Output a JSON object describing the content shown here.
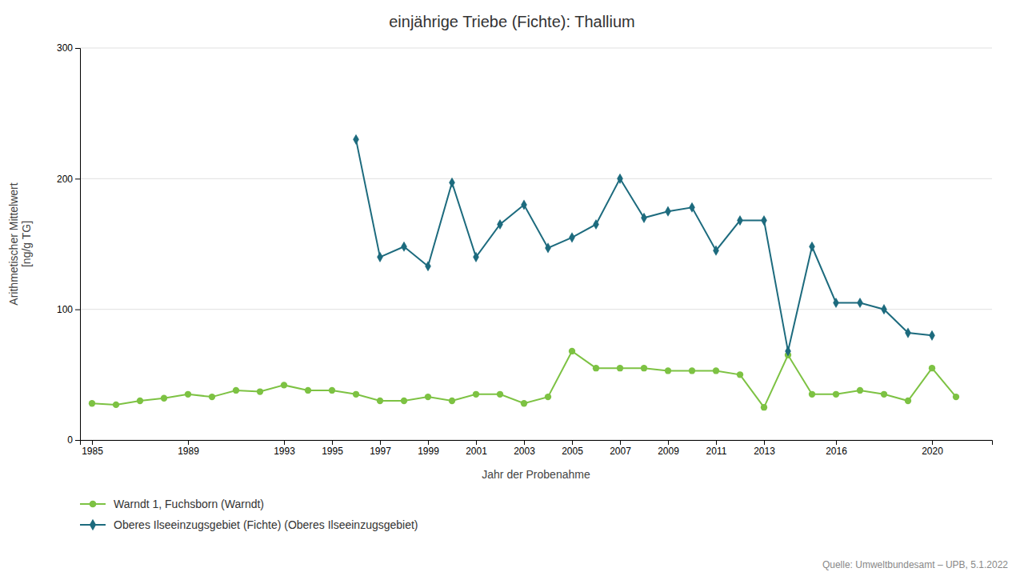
{
  "chart_data": {
    "type": "line",
    "title": "einjährige Triebe (Fichte): Thallium",
    "xlabel": "Jahr der Probenahme",
    "ylabel": "Arithmetischer Mittelwert\n[ng/g TG]",
    "annotations": [
      "Quelle: Umweltbundesamt – UPB, 5.1.2022"
    ],
    "xlim": [
      1984.5,
      2022.5
    ],
    "xticks": [
      1985,
      1989,
      1993,
      1995,
      1997,
      1999,
      2001,
      2003,
      2005,
      2007,
      2009,
      2011,
      2013,
      2016,
      2020
    ],
    "ylim": [
      0,
      300
    ],
    "yticks": [
      0,
      100,
      200,
      300
    ],
    "grid": "y",
    "legend": "bottom",
    "series": [
      {
        "name": "Warndt 1, Fuchsborn (Warndt)",
        "color": "#7DC243",
        "marker": "circle",
        "x": [
          1985,
          1986,
          1987,
          1988,
          1989,
          1990,
          1991,
          1992,
          1993,
          1994,
          1995,
          1996,
          1997,
          1998,
          1999,
          2000,
          2001,
          2002,
          2003,
          2004,
          2005,
          2006,
          2007,
          2008,
          2009,
          2010,
          2011,
          2012,
          2013,
          2014,
          2015,
          2016,
          2017,
          2018,
          2019,
          2020,
          2021
        ],
        "values": [
          28,
          27,
          30,
          32,
          35,
          33,
          38,
          37,
          42,
          38,
          38,
          35,
          30,
          30,
          33,
          30,
          35,
          35,
          28,
          33,
          68,
          55,
          55,
          55,
          53,
          53,
          53,
          50,
          25,
          65,
          35,
          35,
          38,
          35,
          30,
          55,
          33
        ]
      },
      {
        "name": "Oberes Ilseeinzugsgebiet (Fichte) (Oberes Ilseeinzugsgebiet)",
        "color": "#1D6B7E",
        "marker": "diamond",
        "x": [
          1996,
          1997,
          1998,
          1999,
          2000,
          2001,
          2002,
          2003,
          2004,
          2005,
          2006,
          2007,
          2008,
          2009,
          2010,
          2011,
          2012,
          2013,
          2014,
          2015,
          2016,
          2017,
          2018,
          2019,
          2020
        ],
        "values": [
          230,
          140,
          148,
          133,
          197,
          140,
          165,
          180,
          147,
          155,
          165,
          200,
          170,
          175,
          178,
          145,
          168,
          168,
          68,
          148,
          105,
          105,
          100,
          82,
          80
        ]
      }
    ]
  }
}
